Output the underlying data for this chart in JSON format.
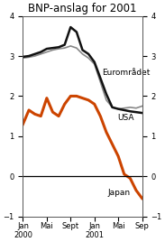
{
  "title": "BNP-anslag for 2001",
  "ylim": [
    -1,
    4
  ],
  "yticks": [
    -1,
    0,
    1,
    2,
    3,
    4
  ],
  "xtick_labels": [
    "Jan\n2000",
    "Mai",
    "Sept",
    "Jan\n2001",
    "Mai",
    "Sep"
  ],
  "xtick_positions": [
    0,
    4,
    8,
    12,
    16,
    20
  ],
  "euroradet_color": "#111111",
  "usa_color": "#888888",
  "japan_color": "#cc4400",
  "label_euroradet": "Eurområdet",
  "label_usa": "USA",
  "label_japan": "Japan",
  "euroradet_x": [
    0,
    1,
    2,
    3,
    4,
    5,
    6,
    7,
    8,
    9,
    10,
    11,
    12,
    13,
    14,
    15,
    16,
    17,
    18,
    19,
    20
  ],
  "euroradet_y": [
    2.98,
    3.0,
    3.05,
    3.1,
    3.18,
    3.2,
    3.22,
    3.28,
    3.72,
    3.6,
    3.15,
    3.05,
    2.85,
    2.45,
    2.05,
    1.72,
    1.68,
    1.65,
    1.62,
    1.6,
    1.58
  ],
  "usa_x": [
    0,
    1,
    2,
    3,
    4,
    5,
    6,
    7,
    8,
    9,
    10,
    11,
    12,
    13,
    14,
    15,
    16,
    17,
    18,
    19,
    20
  ],
  "usa_y": [
    2.95,
    2.97,
    3.0,
    3.05,
    3.1,
    3.15,
    3.18,
    3.2,
    3.25,
    3.2,
    3.05,
    2.95,
    2.8,
    2.35,
    1.9,
    1.72,
    1.68,
    1.7,
    1.72,
    1.7,
    1.75
  ],
  "japan_x": [
    0,
    1,
    2,
    3,
    4,
    5,
    6,
    7,
    8,
    9,
    10,
    11,
    12,
    13,
    14,
    15,
    16,
    17,
    18,
    19,
    20
  ],
  "japan_y": [
    1.3,
    1.65,
    1.55,
    1.5,
    1.95,
    1.6,
    1.5,
    1.8,
    2.0,
    2.0,
    1.95,
    1.9,
    1.8,
    1.5,
    1.1,
    0.8,
    0.5,
    0.05,
    -0.05,
    -0.35,
    -0.55
  ],
  "background_color": "#ffffff",
  "title_fontsize": 8.5,
  "label_fontsize": 6.5,
  "tick_fontsize": 6.0
}
